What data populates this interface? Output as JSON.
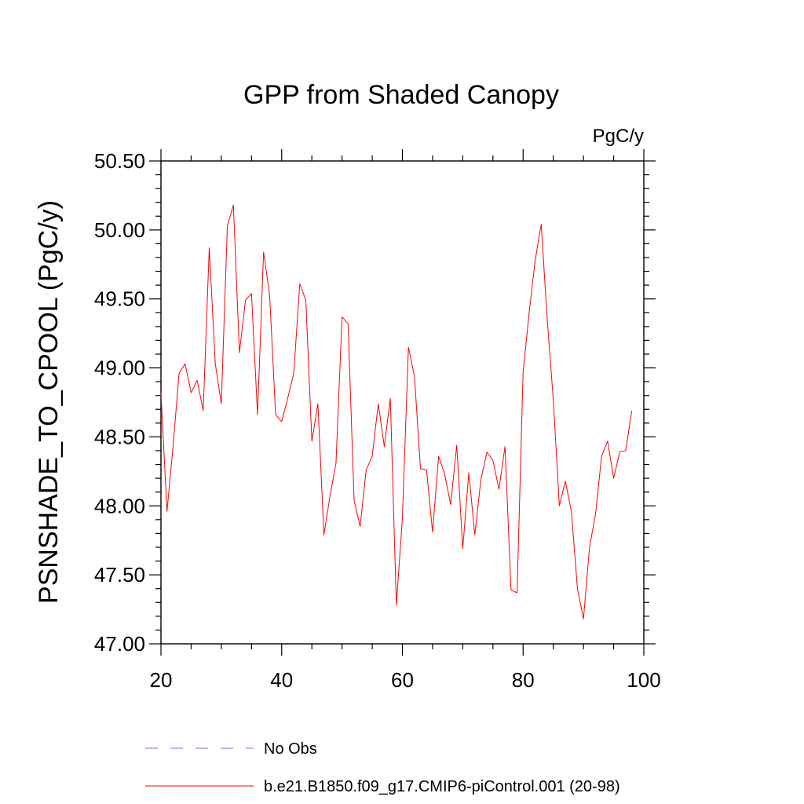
{
  "chart_data": {
    "type": "line",
    "title": "GPP from Shaded Canopy",
    "units_label": "PgC/y",
    "ylabel": "PSNSHADE_TO_CPOOL  (PgC/y)",
    "xlabel": "",
    "xlim": [
      20,
      100
    ],
    "ylim": [
      47.0,
      50.5
    ],
    "xticks": [
      20,
      40,
      60,
      80,
      100
    ],
    "xtick_labels": [
      "20",
      "40",
      "60",
      "80",
      "100"
    ],
    "yticks": [
      47.0,
      47.5,
      48.0,
      48.5,
      49.0,
      49.5,
      50.0,
      50.5
    ],
    "ytick_labels": [
      "47.00",
      "47.50",
      "48.00",
      "48.50",
      "49.00",
      "49.50",
      "50.00",
      "50.50"
    ],
    "grid": false,
    "legend_position": "bottom",
    "legend": [
      {
        "label": "No Obs",
        "color": "#7b68ee",
        "style": "dashed"
      },
      {
        "label": "b.e21.B1850.f09_g17.CMIP6-piControl.001 (20-98)",
        "color": "#ff0000",
        "style": "solid"
      }
    ],
    "series": [
      {
        "name": "b.e21.B1850.f09_g17.CMIP6-piControl.001 (20-98)",
        "color": "#ff0000",
        "x": [
          20,
          21,
          22,
          23,
          24,
          25,
          26,
          27,
          28,
          29,
          30,
          31,
          32,
          33,
          34,
          35,
          36,
          37,
          38,
          39,
          40,
          41,
          42,
          43,
          44,
          45,
          46,
          47,
          48,
          49,
          50,
          51,
          52,
          53,
          54,
          55,
          56,
          57,
          58,
          59,
          60,
          61,
          62,
          63,
          64,
          65,
          66,
          67,
          68,
          69,
          70,
          71,
          72,
          73,
          74,
          75,
          76,
          77,
          78,
          79,
          80,
          81,
          82,
          83,
          84,
          85,
          86,
          87,
          88,
          89,
          90,
          91,
          92,
          93,
          94,
          95,
          96,
          97,
          98
        ],
        "values": [
          48.82,
          47.96,
          48.43,
          48.96,
          49.03,
          48.82,
          48.91,
          48.69,
          49.87,
          49.03,
          48.74,
          50.03,
          50.18,
          49.11,
          49.49,
          49.54,
          48.66,
          49.84,
          49.53,
          48.66,
          48.61,
          48.78,
          48.96,
          49.61,
          49.49,
          48.47,
          48.74,
          47.79,
          48.07,
          48.31,
          49.37,
          49.32,
          48.04,
          47.85,
          48.26,
          48.36,
          48.74,
          48.43,
          48.78,
          47.28,
          47.91,
          49.15,
          48.94,
          48.27,
          48.26,
          47.81,
          48.36,
          48.23,
          48.01,
          48.44,
          47.69,
          48.24,
          47.79,
          48.19,
          48.39,
          48.33,
          48.12,
          48.43,
          47.39,
          47.37,
          48.97,
          49.4,
          49.78,
          50.04,
          49.35,
          48.77,
          48.0,
          48.18,
          47.96,
          47.4,
          47.18,
          47.7,
          47.94,
          48.36,
          48.47,
          48.2,
          48.39,
          48.4,
          48.69
        ]
      }
    ]
  }
}
